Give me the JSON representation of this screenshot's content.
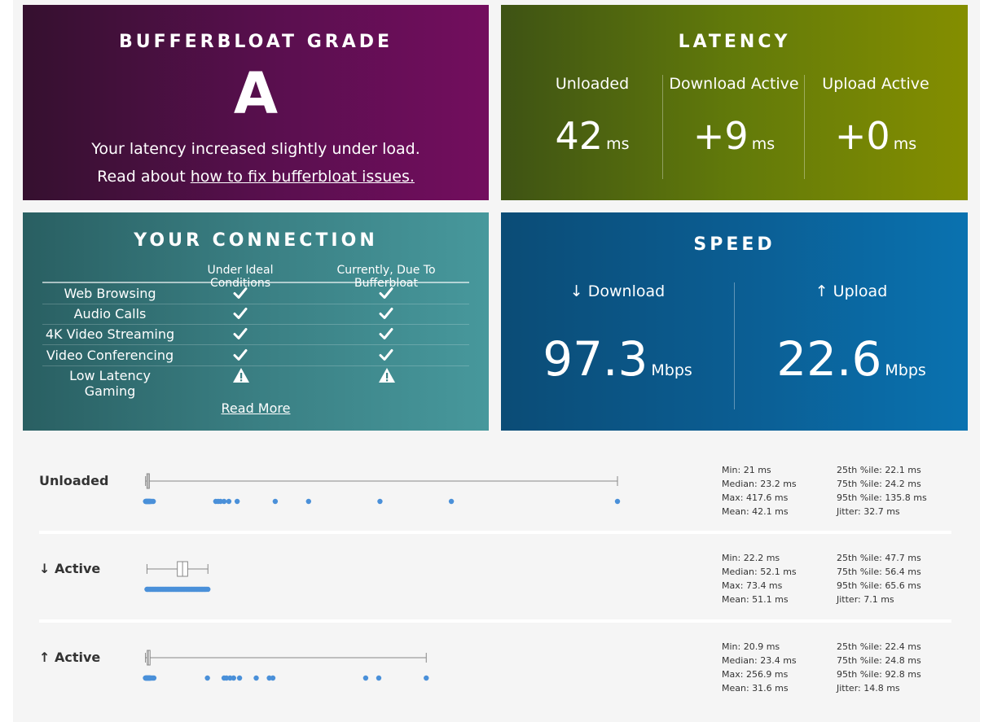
{
  "grade": {
    "title": "BUFFERBLOAT GRADE",
    "letter": "A",
    "description": "Your latency increased slightly under load.",
    "read_prefix": "Read about ",
    "read_link": "how to fix bufferbloat issues."
  },
  "latency": {
    "title": "LATENCY",
    "columns": [
      {
        "label": "Unloaded",
        "value": "42",
        "unit": "ms"
      },
      {
        "label": "Download Active",
        "value": "+9",
        "unit": "ms"
      },
      {
        "label": "Upload Active",
        "value": "+0",
        "unit": "ms"
      }
    ]
  },
  "connection": {
    "title": "YOUR CONNECTION",
    "headers": [
      "Under Ideal Conditions",
      "Currently, Due To Bufferbloat"
    ],
    "rows": [
      {
        "name": "Web Browsing",
        "ideal": "check-icon",
        "current": "check-icon"
      },
      {
        "name": "Audio Calls",
        "ideal": "check-icon",
        "current": "check-icon"
      },
      {
        "name": "4K Video Streaming",
        "ideal": "check-icon",
        "current": "check-icon"
      },
      {
        "name": "Video Conferencing",
        "ideal": "check-icon",
        "current": "check-icon"
      },
      {
        "name": "Low Latency Gaming",
        "ideal": "warning-icon",
        "current": "warning-icon"
      }
    ],
    "read_more": "Read More"
  },
  "speed": {
    "title": "SPEED",
    "columns": [
      {
        "label": "↓ Download",
        "value": "97.3",
        "unit": "Mbps"
      },
      {
        "label": "↑ Upload",
        "value": "22.6",
        "unit": "Mbps"
      }
    ]
  },
  "stats": [
    {
      "label": "Unloaded",
      "box": {
        "min": 21,
        "q1": 22.1,
        "median": 23.2,
        "q3": 24.2,
        "max": 417.6
      },
      "points": [
        21,
        21.3,
        21.6,
        21.9,
        22.2,
        22.5,
        22.8,
        23.1,
        23.4,
        23.7,
        24.0,
        24.3,
        24.6,
        25.0,
        25.5,
        26.5,
        27.5,
        80,
        82,
        84,
        87,
        91,
        98,
        130,
        158,
        218,
        278,
        417.6
      ],
      "left": [
        "Min: 21 ms",
        "Median: 23.2 ms",
        "Max: 417.6 ms",
        "Mean: 42.1 ms"
      ],
      "right": [
        "25th %ile: 22.1 ms",
        "75th %ile: 24.2 ms",
        "95th %ile: 135.8 ms",
        "Jitter: 32.7 ms"
      ]
    },
    {
      "label": "↓ Active",
      "box": {
        "min": 22.2,
        "q1": 47.7,
        "median": 52.1,
        "q3": 56.4,
        "max": 73.4
      },
      "points": [
        22.2,
        23,
        24,
        25,
        26,
        27,
        28,
        29,
        30,
        31,
        32,
        33,
        34,
        35,
        36,
        37,
        38,
        39,
        40,
        41,
        42,
        43,
        44,
        45,
        46,
        47,
        48,
        49,
        50,
        51,
        52,
        53,
        54,
        55,
        56,
        57,
        58,
        59,
        60,
        61,
        62,
        63,
        64,
        65,
        66,
        67,
        68,
        69,
        70,
        71,
        72,
        73.4
      ],
      "left": [
        "Min: 22.2 ms",
        "Median: 52.1 ms",
        "Max: 73.4 ms",
        "Mean: 51.1 ms"
      ],
      "right": [
        "25th %ile: 47.7 ms",
        "75th %ile: 56.4 ms",
        "95th %ile: 65.6 ms",
        "Jitter: 7.1 ms"
      ]
    },
    {
      "label": "↑ Active",
      "box": {
        "min": 20.9,
        "q1": 22.4,
        "median": 23.4,
        "q3": 24.8,
        "max": 256.9
      },
      "points": [
        20.9,
        21.2,
        21.5,
        21.8,
        22.1,
        22.4,
        22.7,
        23.0,
        23.3,
        23.6,
        23.9,
        24.2,
        24.5,
        24.8,
        25.2,
        26,
        27,
        28,
        73,
        87,
        89,
        92,
        95,
        100,
        114,
        125,
        128,
        206,
        217,
        256.9
      ],
      "left": [
        "Min: 20.9 ms",
        "Median: 23.4 ms",
        "Max: 256.9 ms",
        "Mean: 31.6 ms"
      ],
      "right": [
        "25th %ile: 22.4 ms",
        "75th %ile: 24.8 ms",
        "95th %ile: 92.8 ms",
        "Jitter: 14.8 ms"
      ]
    }
  ],
  "colors": {
    "point": "#4a90d9",
    "box_stroke": "#888888"
  }
}
